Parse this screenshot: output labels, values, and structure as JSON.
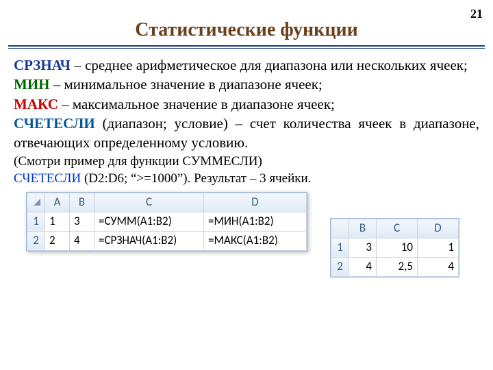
{
  "page_number": "21",
  "title": {
    "text": "Статистические функции",
    "color": "#6b3e1a"
  },
  "func_colors": {
    "srznach": "#1a3a9a",
    "min": "#006600",
    "max": "#cc0000",
    "schet": "#005599"
  },
  "defs": {
    "srznach_name": "СРЗНАЧ",
    "srznach_rest": " – среднее арифметическое для диапазона или нескольких ячеек;",
    "min_name": "МИН",
    "min_rest": " – минимальное значение в диапазоне ячеек;",
    "max_name": "МАКС",
    "max_rest": " – максимальное значение в диапазоне ячеек;",
    "schet_name": "СЧЕТЕСЛИ",
    "schet_rest": " (диапазон; условие) – счет количества ячеек в диапазоне, отвечающих определенному условию.",
    "note": "(Смотри  пример для функции СУММЕСЛИ)",
    "example_fn": "СЧЕТЕСЛИ",
    "example_rest": " (D2:D6; “>=1000”). Результат – 3 ячейки."
  },
  "sheet1": {
    "headers": [
      "A",
      "B",
      "C",
      "D"
    ],
    "rows": [
      {
        "n": "1",
        "a": "1",
        "b": "3",
        "c": "=СУММ(A1:B2)",
        "d": "=МИН(A1:B2)"
      },
      {
        "n": "2",
        "a": "2",
        "b": "4",
        "c": "=СРЗНАЧ(A1:B2)",
        "d": "=МАКС(A1:B2)"
      }
    ]
  },
  "sheet2": {
    "headers": [
      "B",
      "C",
      "D"
    ],
    "rows": [
      {
        "n": "1",
        "b": "3",
        "c": "10",
        "d": "1"
      },
      {
        "n": "2",
        "b": "4",
        "c": "2,5",
        "d": "4"
      }
    ]
  }
}
